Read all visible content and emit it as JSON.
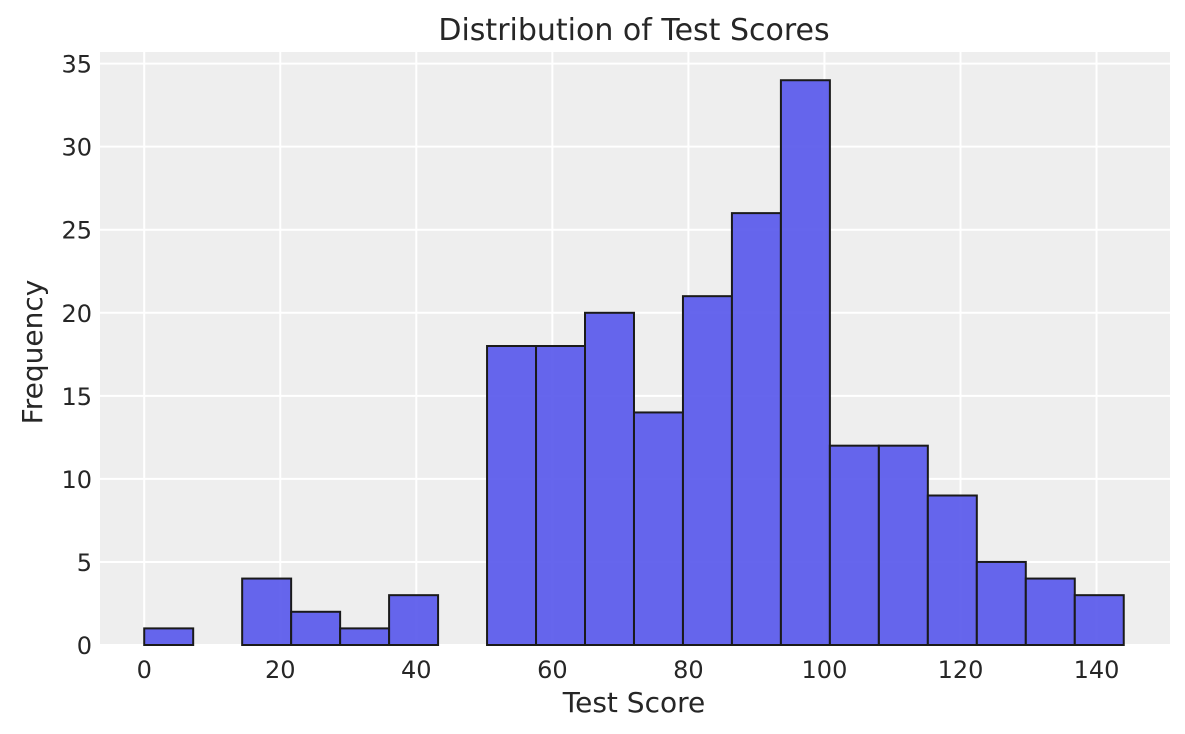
{
  "chart_data": {
    "type": "bar",
    "title": "Distribution of Test Scores",
    "xlabel": "Test Score",
    "ylabel": "Frequency",
    "xlim": [
      -6.5,
      150.8
    ],
    "ylim": [
      0,
      35.7
    ],
    "xticks": [
      0,
      20,
      40,
      60,
      80,
      100,
      120,
      140
    ],
    "yticks": [
      0,
      5,
      10,
      15,
      20,
      25,
      30,
      35
    ],
    "grid": true,
    "bar_color": "#5a5aec",
    "edge_color": "#1a1a1a",
    "background_color": "#eeeeee",
    "bins": [
      {
        "start": 0.0,
        "end": 7.2,
        "count": 1
      },
      {
        "start": 7.2,
        "end": 14.4,
        "count": 0
      },
      {
        "start": 14.4,
        "end": 21.6,
        "count": 4
      },
      {
        "start": 21.6,
        "end": 28.8,
        "count": 2
      },
      {
        "start": 28.8,
        "end": 36.0,
        "count": 1
      },
      {
        "start": 36.0,
        "end": 43.2,
        "count": 3
      },
      {
        "start": 43.2,
        "end": 50.4,
        "count": 0
      },
      {
        "start": 50.4,
        "end": 57.6,
        "count": 18
      },
      {
        "start": 57.6,
        "end": 64.8,
        "count": 18
      },
      {
        "start": 64.8,
        "end": 72.0,
        "count": 20
      },
      {
        "start": 72.0,
        "end": 79.2,
        "count": 14
      },
      {
        "start": 79.2,
        "end": 86.4,
        "count": 21
      },
      {
        "start": 86.4,
        "end": 93.6,
        "count": 26
      },
      {
        "start": 93.6,
        "end": 100.8,
        "count": 34
      },
      {
        "start": 100.8,
        "end": 108.0,
        "count": 12
      },
      {
        "start": 108.0,
        "end": 115.2,
        "count": 12
      },
      {
        "start": 115.2,
        "end": 122.4,
        "count": 9
      },
      {
        "start": 122.4,
        "end": 129.6,
        "count": 5
      },
      {
        "start": 129.6,
        "end": 136.8,
        "count": 4
      },
      {
        "start": 136.8,
        "end": 144.0,
        "count": 3
      }
    ]
  }
}
